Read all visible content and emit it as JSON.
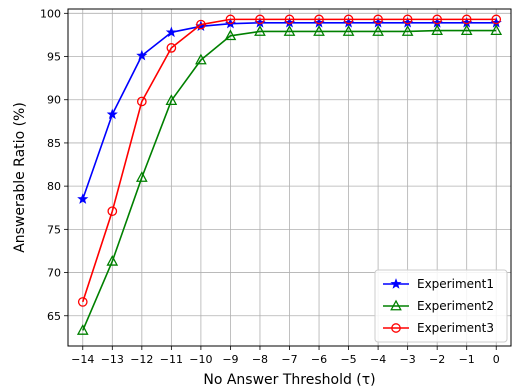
{
  "chart_data": {
    "type": "line",
    "xlabel": "No Answer Threshold (τ)",
    "ylabel": "Answerable Ratio (%)",
    "xlim": [
      -14.5,
      0.5
    ],
    "ylim": [
      61.5,
      100.5
    ],
    "xticks": [
      -14,
      -13,
      -12,
      -11,
      -10,
      -9,
      -8,
      -7,
      -6,
      -5,
      -4,
      -3,
      -2,
      -1,
      0
    ],
    "xtick_labels": [
      "−14",
      "−13",
      "−12",
      "−11",
      "−10",
      "−9",
      "−8",
      "−7",
      "−6",
      "−5",
      "−4",
      "−3",
      "−2",
      "−1",
      "0"
    ],
    "yticks": [
      65,
      70,
      75,
      80,
      85,
      90,
      95,
      100
    ],
    "ytick_labels": [
      "65",
      "70",
      "75",
      "80",
      "85",
      "90",
      "95",
      "100"
    ],
    "grid": true,
    "legend_position": "bottom-right",
    "x": [
      -14,
      -13,
      -12,
      -11,
      -10,
      -9,
      -8,
      -7,
      -6,
      -5,
      -4,
      -3,
      -2,
      -1,
      0
    ],
    "series": [
      {
        "name": "Experiment1",
        "color": "#0000ff",
        "marker": "star",
        "values": [
          78.5,
          88.3,
          95.1,
          97.8,
          98.5,
          98.8,
          98.9,
          98.9,
          98.9,
          98.9,
          98.9,
          98.9,
          98.9,
          98.9,
          98.9
        ]
      },
      {
        "name": "Experiment2",
        "color": "#008000",
        "marker": "triangle",
        "values": [
          63.3,
          71.3,
          81.0,
          89.9,
          94.6,
          97.4,
          97.9,
          97.9,
          97.9,
          97.9,
          97.9,
          97.9,
          98.0,
          98.0,
          98.0
        ]
      },
      {
        "name": "Experiment3",
        "color": "#ff0000",
        "marker": "circle",
        "values": [
          66.6,
          77.1,
          89.8,
          96.0,
          98.7,
          99.3,
          99.3,
          99.3,
          99.3,
          99.3,
          99.3,
          99.3,
          99.3,
          99.3,
          99.3
        ]
      }
    ]
  }
}
